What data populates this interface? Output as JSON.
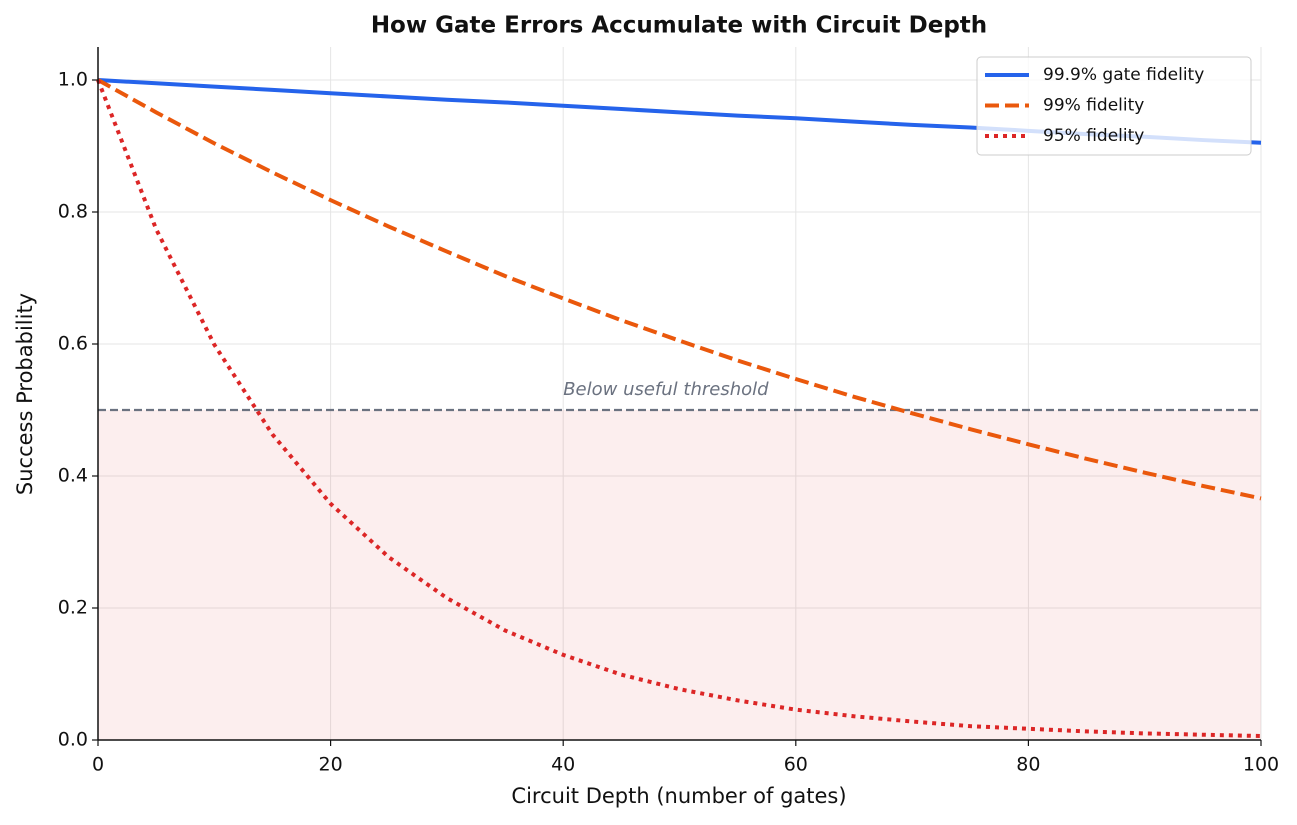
{
  "chart_data": {
    "type": "line",
    "title": "How Gate Errors Accumulate with Circuit Depth",
    "x_label": "Circuit Depth (number of gates)",
    "y_label": "Success Probability",
    "x": [
      0,
      5,
      10,
      15,
      20,
      25,
      30,
      35,
      40,
      45,
      50,
      55,
      60,
      65,
      70,
      75,
      80,
      85,
      90,
      95,
      100
    ],
    "series": [
      {
        "name": "99.9% gate fidelity",
        "color": "#2563eb",
        "linestyle": "solid",
        "values": [
          1,
          0.995,
          0.99,
          0.985,
          0.98,
          0.975,
          0.97,
          0.966,
          0.961,
          0.956,
          0.951,
          0.946,
          0.942,
          0.937,
          0.932,
          0.928,
          0.923,
          0.918,
          0.914,
          0.909,
          0.905
        ]
      },
      {
        "name": "99% fidelity",
        "color": "#ea580c",
        "linestyle": "dashed",
        "values": [
          1,
          0.951,
          0.904,
          0.86,
          0.818,
          0.778,
          0.74,
          0.703,
          0.669,
          0.636,
          0.605,
          0.575,
          0.547,
          0.52,
          0.495,
          0.471,
          0.448,
          0.426,
          0.405,
          0.385,
          0.366
        ]
      },
      {
        "name": "95% fidelity",
        "color": "#dc2626",
        "linestyle": "dotted",
        "values": [
          1,
          0.774,
          0.599,
          0.463,
          0.358,
          0.277,
          0.215,
          0.166,
          0.129,
          0.099,
          0.077,
          0.06,
          0.046,
          0.036,
          0.028,
          0.021,
          0.017,
          0.013,
          0.01,
          0.008,
          0.006
        ]
      }
    ],
    "threshold": 0.5,
    "threshold_label": "Below useful threshold",
    "xlim": [
      0,
      100
    ],
    "xticks": [
      0,
      20,
      40,
      60,
      80,
      100
    ],
    "ylim": [
      0,
      1.05
    ],
    "yticks": [
      {
        "value": 0,
        "label": "0.0"
      },
      0.2,
      0.4,
      0.6,
      0.8,
      {
        "value": 1,
        "label": "1.0"
      }
    ],
    "grid": true,
    "legend": "upper right"
  }
}
